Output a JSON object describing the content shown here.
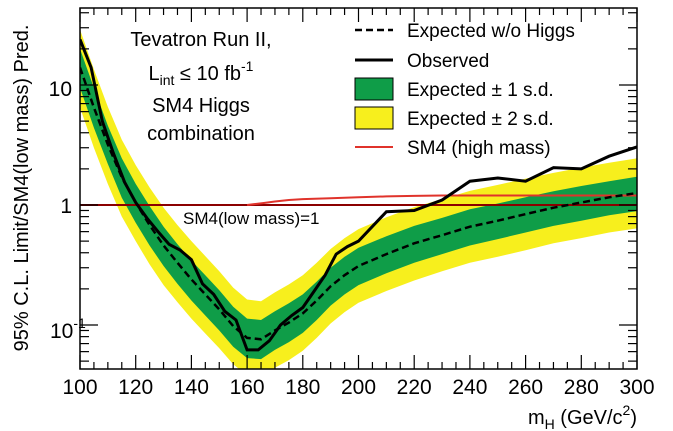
{
  "chart_data": {
    "type": "line",
    "x_axis": {
      "label_main": "m",
      "label_sub": "H",
      "label_tail": " (GeV/c",
      "label_sup": "2",
      "label_end": ")",
      "range": [
        100,
        300
      ],
      "ticks": [
        "100",
        "120",
        "140",
        "160",
        "180",
        "200",
        "220",
        "240",
        "260",
        "280",
        "300"
      ]
    },
    "y_axis": {
      "label": "95% C.L. Limit/SM4(low mass) Pred.",
      "scale": "log",
      "range": [
        0.05,
        30
      ],
      "tick_10": "10",
      "tick_1": "1",
      "tick_01_base": "10",
      "tick_01_exp": "-1"
    },
    "annotation": {
      "line1": "Tevatron Run II,",
      "line2_main": "L",
      "line2_sub": "int",
      "line2_mid": " ≤ 10 fb",
      "line2_sup": "-1",
      "line3": "SM4 Higgs",
      "line4": "combination",
      "reference_label": "SM4(low mass)=1"
    },
    "legend": {
      "position": "top-right",
      "expected": "Expected w/o Higgs",
      "observed": "Observed",
      "band1": "Expected ± 1 s.d.",
      "band2": "Expected ± 2 s.d.",
      "sm4_high": "SM4 (high mass)"
    },
    "colors": {
      "band1": "#0f9d48",
      "band2": "#f7ef1d",
      "sm4_high": "#e0332b",
      "reference": "#8b0000",
      "lines": "#000000"
    },
    "series": [
      {
        "name": "Expected w/o Higgs",
        "x": [
          100,
          105,
          110,
          115,
          120,
          125,
          130,
          135,
          140,
          145,
          150,
          155,
          160,
          165,
          170,
          175,
          180,
          185,
          190,
          195,
          200,
          210,
          220,
          230,
          240,
          250,
          260,
          270,
          280,
          290,
          300
        ],
        "y": [
          14,
          6.5,
          3.2,
          1.7,
          1.05,
          0.68,
          0.46,
          0.33,
          0.24,
          0.18,
          0.135,
          0.098,
          0.078,
          0.076,
          0.09,
          0.105,
          0.125,
          0.16,
          0.21,
          0.26,
          0.31,
          0.39,
          0.48,
          0.56,
          0.66,
          0.74,
          0.84,
          0.95,
          1.05,
          1.16,
          1.26
        ]
      },
      {
        "name": "Observed",
        "x": [
          100,
          104,
          108,
          112,
          116,
          120,
          124,
          128,
          132,
          136,
          140,
          144,
          148,
          152,
          156,
          160,
          164,
          168,
          172,
          176,
          180,
          184,
          188,
          192,
          196,
          200,
          210,
          220,
          230,
          240,
          250,
          260,
          270,
          280,
          290,
          300
        ],
        "y": [
          24,
          14,
          5.0,
          2.7,
          1.55,
          1.05,
          0.78,
          0.6,
          0.47,
          0.42,
          0.35,
          0.22,
          0.18,
          0.13,
          0.11,
          0.062,
          0.062,
          0.074,
          0.1,
          0.12,
          0.14,
          0.19,
          0.26,
          0.39,
          0.45,
          0.5,
          0.88,
          0.9,
          1.1,
          1.58,
          1.68,
          1.58,
          2.05,
          2.0,
          2.55,
          3.05
        ]
      },
      {
        "name": "SM4 (high mass)",
        "x": [
          160,
          163,
          166,
          170,
          175,
          180,
          190,
          200,
          210,
          220,
          230,
          240,
          250,
          260,
          270,
          280,
          290,
          300
        ],
        "y": [
          1.0,
          1.02,
          1.04,
          1.07,
          1.1,
          1.12,
          1.14,
          1.16,
          1.18,
          1.19,
          1.2,
          1.2,
          1.2,
          1.2,
          1.2,
          1.2,
          1.2,
          1.2
        ]
      }
    ],
    "bands": {
      "x": [
        100,
        105,
        110,
        115,
        120,
        125,
        130,
        135,
        140,
        145,
        150,
        155,
        160,
        165,
        170,
        175,
        180,
        185,
        190,
        195,
        200,
        210,
        220,
        230,
        240,
        250,
        260,
        270,
        280,
        290,
        300
      ],
      "one_sigma_low": [
        9.5,
        4.4,
        2.2,
        1.15,
        0.71,
        0.46,
        0.31,
        0.22,
        0.16,
        0.12,
        0.09,
        0.066,
        0.053,
        0.052,
        0.062,
        0.072,
        0.086,
        0.11,
        0.145,
        0.18,
        0.215,
        0.27,
        0.33,
        0.39,
        0.46,
        0.52,
        0.59,
        0.67,
        0.74,
        0.82,
        0.89
      ],
      "one_sigma_high": [
        20,
        9.5,
        4.6,
        2.45,
        1.5,
        0.98,
        0.66,
        0.47,
        0.345,
        0.26,
        0.195,
        0.142,
        0.113,
        0.11,
        0.13,
        0.152,
        0.18,
        0.23,
        0.3,
        0.37,
        0.44,
        0.55,
        0.67,
        0.78,
        0.92,
        1.03,
        1.16,
        1.3,
        1.44,
        1.58,
        1.72
      ],
      "two_sigma_low": [
        6.5,
        3.0,
        1.5,
        0.8,
        0.5,
        0.32,
        0.215,
        0.155,
        0.113,
        0.085,
        0.064,
        0.047,
        0.038,
        0.037,
        0.044,
        0.051,
        0.061,
        0.078,
        0.103,
        0.128,
        0.153,
        0.192,
        0.235,
        0.28,
        0.33,
        0.37,
        0.42,
        0.48,
        0.53,
        0.59,
        0.64
      ],
      "two_sigma_high": [
        29,
        13.5,
        6.6,
        3.5,
        2.15,
        1.4,
        0.95,
        0.68,
        0.5,
        0.375,
        0.28,
        0.205,
        0.163,
        0.158,
        0.187,
        0.218,
        0.26,
        0.33,
        0.43,
        0.53,
        0.63,
        0.79,
        0.96,
        1.12,
        1.31,
        1.47,
        1.66,
        1.85,
        2.05,
        2.25,
        2.45
      ]
    },
    "reference_value": 1
  }
}
